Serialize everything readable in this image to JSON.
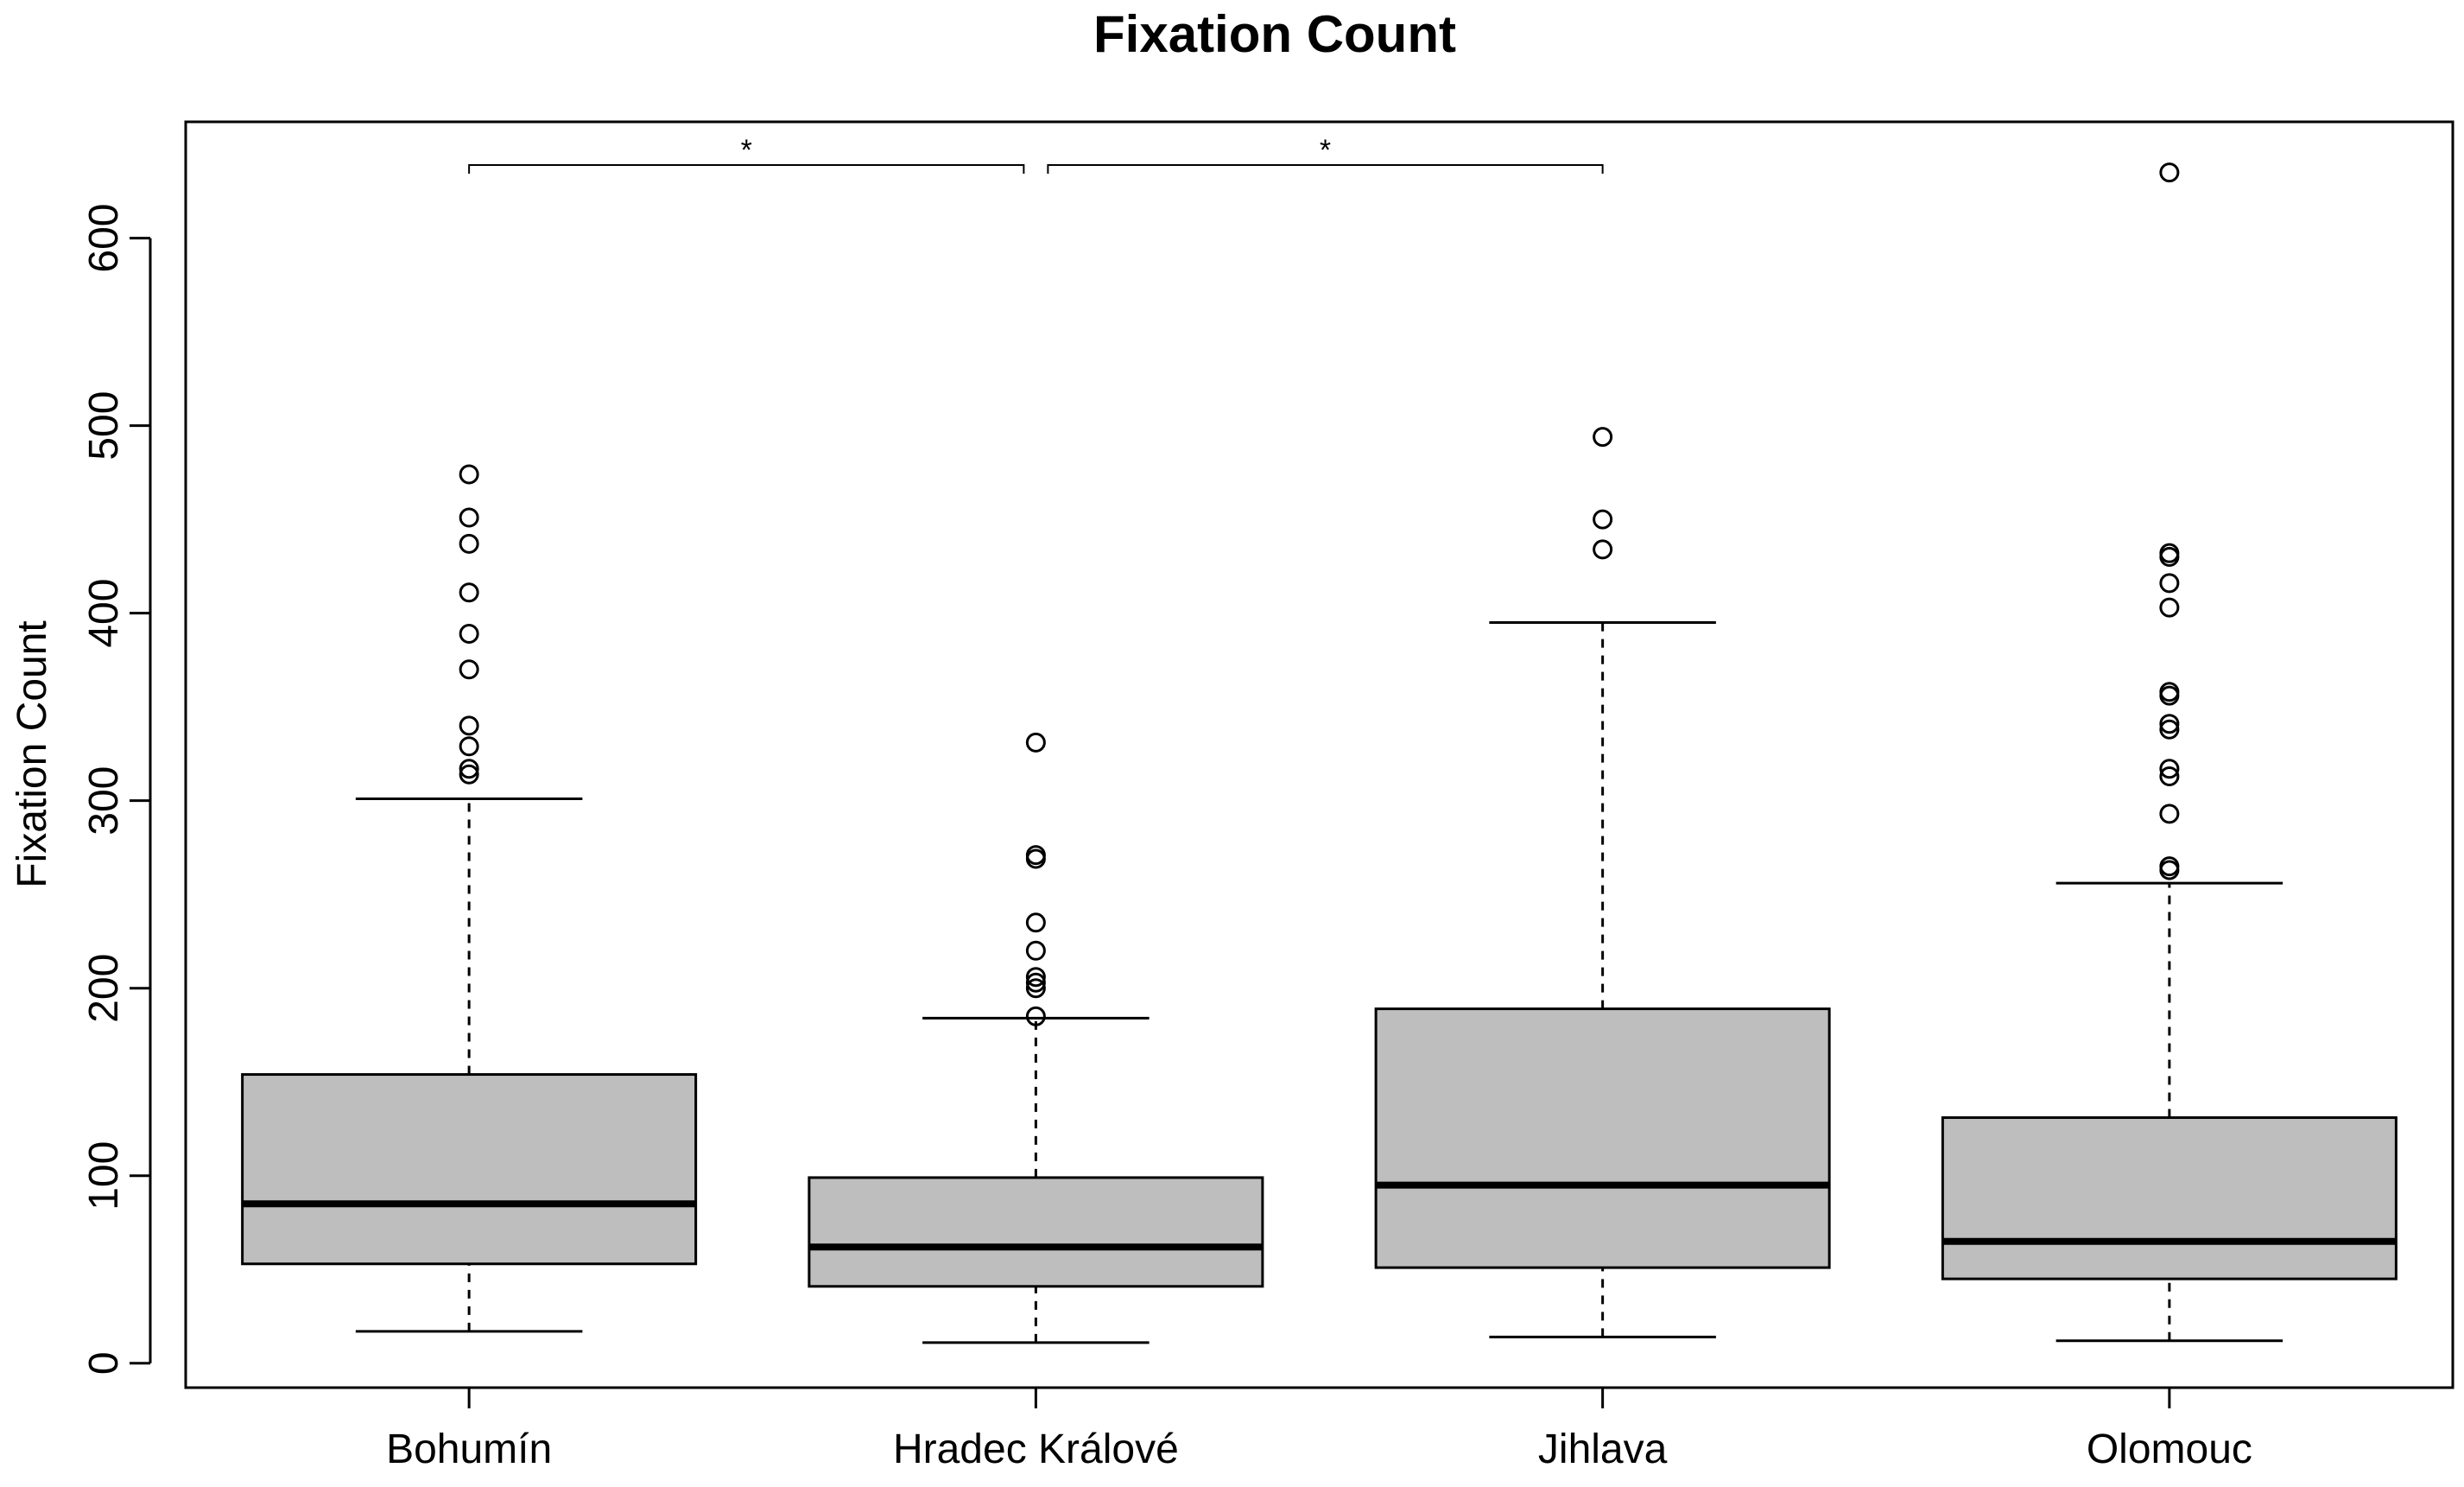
{
  "chart_data": {
    "type": "boxplot",
    "title": "Fixation Count",
    "xlabel": "",
    "ylabel": "Fixation Count",
    "ylim": [
      -13,
      662
    ],
    "yticks": [
      0,
      100,
      200,
      300,
      400,
      500,
      600
    ],
    "categories": [
      "Bohumín",
      "Hradec Králové",
      "Jihlava",
      "Olomouc"
    ],
    "boxes": [
      {
        "name": "Bohumín",
        "whisker_low": 17,
        "q1": 53,
        "median": 85,
        "q3": 154,
        "whisker_high": 301,
        "outliers": [
          314,
          317,
          329,
          340,
          370,
          389,
          411,
          437,
          451,
          474
        ]
      },
      {
        "name": "Hradec Králové",
        "whisker_low": 11,
        "q1": 41,
        "median": 62,
        "q3": 99,
        "whisker_high": 184,
        "outliers": [
          185,
          200,
          203,
          206,
          220,
          235,
          269,
          271,
          331
        ]
      },
      {
        "name": "Jihlava",
        "whisker_low": 14,
        "q1": 51,
        "median": 95,
        "q3": 189,
        "whisker_high": 395,
        "outliers": [
          434,
          450,
          494
        ]
      },
      {
        "name": "Olomouc",
        "whisker_low": 12,
        "q1": 45,
        "median": 65,
        "q3": 131,
        "whisker_high": 256,
        "outliers": [
          263,
          265,
          293,
          313,
          317,
          338,
          341,
          356,
          358,
          403,
          416,
          430,
          432,
          635
        ]
      }
    ],
    "significance": [
      {
        "from": "Bohumín",
        "to": "Hradec Králové",
        "label": "*"
      },
      {
        "from": "Hradec Králové",
        "to": "Jihlava",
        "label": "*"
      }
    ],
    "colors": {
      "box_fill": "#bebebe",
      "stroke": "#000000",
      "background": "#ffffff"
    }
  }
}
